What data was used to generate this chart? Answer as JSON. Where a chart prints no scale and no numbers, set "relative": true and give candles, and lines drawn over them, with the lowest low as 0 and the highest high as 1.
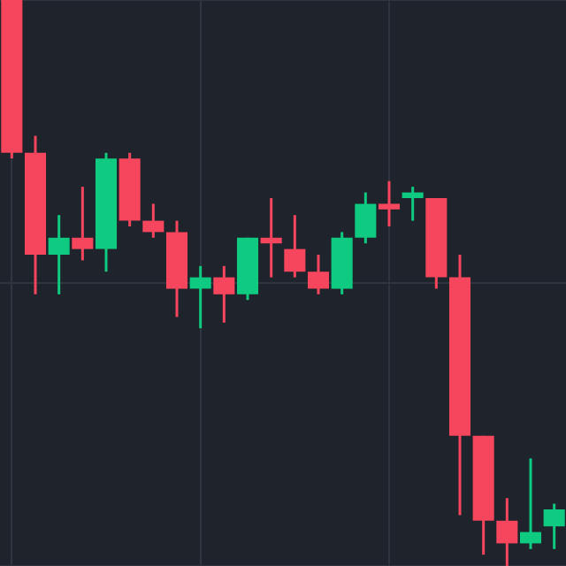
{
  "chart_data": {
    "type": "candlestick",
    "relative": true,
    "grid": true,
    "categories": [
      null,
      null,
      null,
      null,
      null,
      null,
      null,
      null,
      null,
      null,
      null,
      null,
      null,
      null,
      null,
      null,
      null,
      null,
      null,
      null,
      null,
      null,
      null,
      null
    ],
    "ohlc": [
      [
        1,
        1,
        0.72,
        0.73
      ],
      [
        0.73,
        0.76,
        0.48,
        0.55
      ],
      [
        0.55,
        0.62,
        0.48,
        0.58
      ],
      [
        0.58,
        0.67,
        0.54,
        0.56
      ],
      [
        0.56,
        0.73,
        0.52,
        0.72
      ],
      [
        0.72,
        0.73,
        0.6,
        0.61
      ],
      [
        0.61,
        0.64,
        0.58,
        0.59
      ],
      [
        0.59,
        0.61,
        0.44,
        0.49
      ],
      [
        0.49,
        0.53,
        0.42,
        0.51
      ],
      [
        0.51,
        0.53,
        0.43,
        0.48
      ],
      [
        0.48,
        0.58,
        0.47,
        0.58
      ],
      [
        0.58,
        0.65,
        0.51,
        0.57
      ],
      [
        0.56,
        0.62,
        0.51,
        0.52
      ],
      [
        0.52,
        0.55,
        0.48,
        0.49
      ],
      [
        0.49,
        0.59,
        0.48,
        0.58
      ],
      [
        0.58,
        0.66,
        0.57,
        0.64
      ],
      [
        0.64,
        0.68,
        0.6,
        0.63
      ],
      [
        0.65,
        0.67,
        0.61,
        0.66
      ],
      [
        0.65,
        0.65,
        0.49,
        0.51
      ],
      [
        0.51,
        0.55,
        0.09,
        0.23
      ],
      [
        0.23,
        0.23,
        0.02,
        0.08
      ],
      [
        0.08,
        0.12,
        0,
        0.04
      ],
      [
        0.04,
        0.19,
        0.03,
        0.06
      ],
      [
        0.07,
        0.11,
        0.03,
        0.1
      ]
    ],
    "colors": [
      "#f6465d",
      "#f6465d",
      "#0ecb81",
      "#f6465d",
      "#0ecb81",
      "#f6465d",
      "#f6465d",
      "#f6465d",
      "#0ecb81",
      "#f6465d",
      "#0ecb81",
      "#f6465d",
      "#f6465d",
      "#f6465d",
      "#0ecb81",
      "#0ecb81",
      "#f6465d",
      "#0ecb81",
      "#f6465d",
      "#f6465d",
      "#f6465d",
      "#f6465d",
      "#0ecb81",
      "#0ecb81"
    ]
  }
}
